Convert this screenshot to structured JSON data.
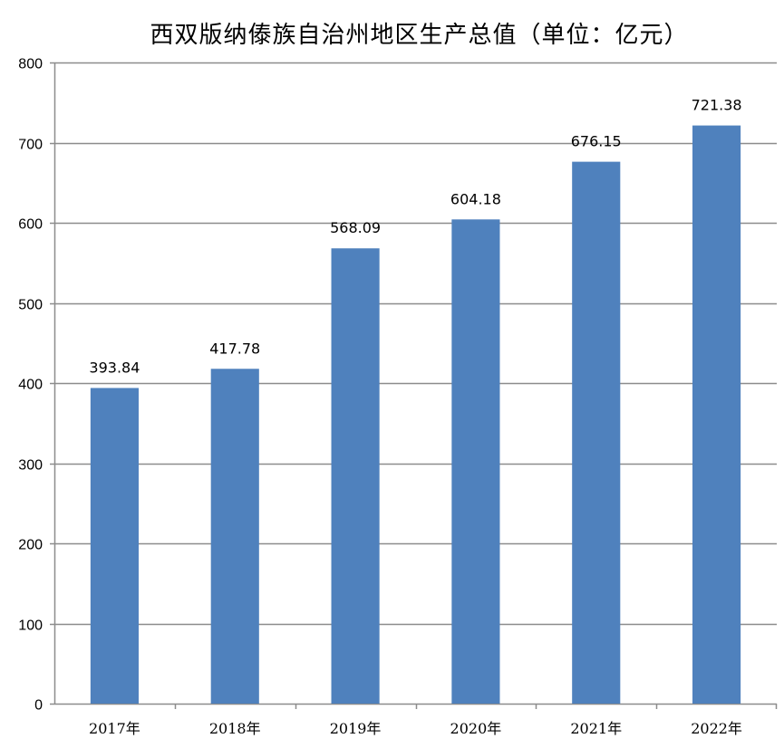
{
  "chart_data": {
    "type": "bar",
    "title": "西双版纳傣族自治州地区生产总值（单位：亿元）",
    "categories": [
      "2017年",
      "2018年",
      "2019年",
      "2020年",
      "2021年",
      "2022年"
    ],
    "values": [
      393.84,
      417.78,
      568.09,
      604.18,
      676.15,
      721.38
    ],
    "value_labels": [
      "393.84",
      "417.78",
      "568.09",
      "604.18",
      "676.15",
      "721.38"
    ],
    "ylim": [
      0,
      800
    ],
    "yticks": [
      0,
      100,
      200,
      300,
      400,
      500,
      600,
      700,
      800
    ],
    "grid": true,
    "legend": "none",
    "bar_color": "#4F81BD",
    "grid_color": "#8C8C8C"
  }
}
